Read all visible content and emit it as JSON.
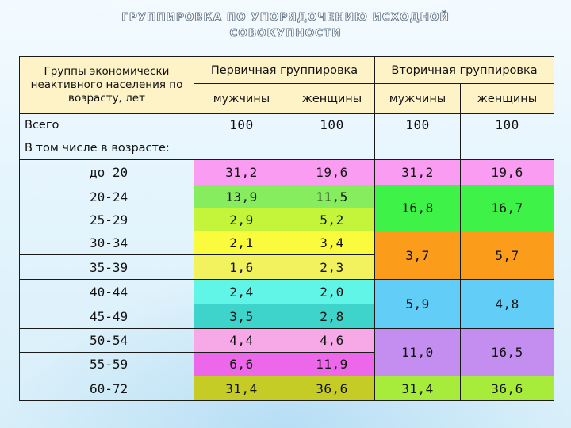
{
  "title": {
    "line1": "ГРУППИРОВКА ПО УПОРЯДОЧЕНИЮ ИСХОДНОЙ",
    "line2": "СОВОКУПНОСТИ"
  },
  "table": {
    "corner_header": "Группы экономически неактивного населения по возрасту, лет",
    "primary_header": "Первичная группировка",
    "secondary_header": "Вторичная группировка",
    "men": "мужчины",
    "women": "женщины",
    "total_label": "Всего",
    "total": {
      "p_men": "100",
      "p_women": "100",
      "s_men": "100",
      "s_women": "100"
    },
    "including_label": "В том числе в возрасте:",
    "rows": [
      {
        "age": "до 20",
        "p_men": "31,2",
        "p_women": "19,6"
      },
      {
        "age": "20-24",
        "p_men": "13,9",
        "p_women": "11,5"
      },
      {
        "age": "25-29",
        "p_men": "2,9",
        "p_women": "5,2"
      },
      {
        "age": "30-34",
        "p_men": "2,1",
        "p_women": "3,4"
      },
      {
        "age": "35-39",
        "p_men": "1,6",
        "p_women": "2,3"
      },
      {
        "age": "40-44",
        "p_men": "2,4",
        "p_women": "2,0"
      },
      {
        "age": "45-49",
        "p_men": "3,5",
        "p_women": "2,8"
      },
      {
        "age": "50-54",
        "p_men": "4,4",
        "p_women": "4,6"
      },
      {
        "age": "55-59",
        "p_men": "6,6",
        "p_women": "11,9"
      },
      {
        "age": "60-72",
        "p_men": "31,4",
        "p_women": "36,6"
      }
    ],
    "secondary": [
      {
        "s_men": "31,2",
        "s_women": "19,6"
      },
      {
        "s_men": "16,8",
        "s_women": "16,7"
      },
      {
        "s_men": "3,7",
        "s_women": "5,7"
      },
      {
        "s_men": "5,9",
        "s_women": "4,8"
      },
      {
        "s_men": "11,0",
        "s_women": "16,5"
      },
      {
        "s_men": "31,4",
        "s_women": "36,6"
      }
    ]
  },
  "colors": {
    "row_0": "#f99cf2",
    "row_1": "#86ee5e",
    "row_2": "#c5f53a",
    "row_3": "#fbfb3e",
    "row_4": "#f2f25e",
    "row_5": "#61f5e8",
    "row_6": "#3ed4cb",
    "row_7": "#f6a9e6",
    "row_8": "#ec67ea",
    "row_9": "#c6cc26",
    "group_0": "#f99cf2",
    "group_1": "#3ef247",
    "group_2": "#fb9d1a",
    "group_3": "#62cdf6",
    "group_4": "#c48df0",
    "group_5": "#a7ec3a"
  }
}
